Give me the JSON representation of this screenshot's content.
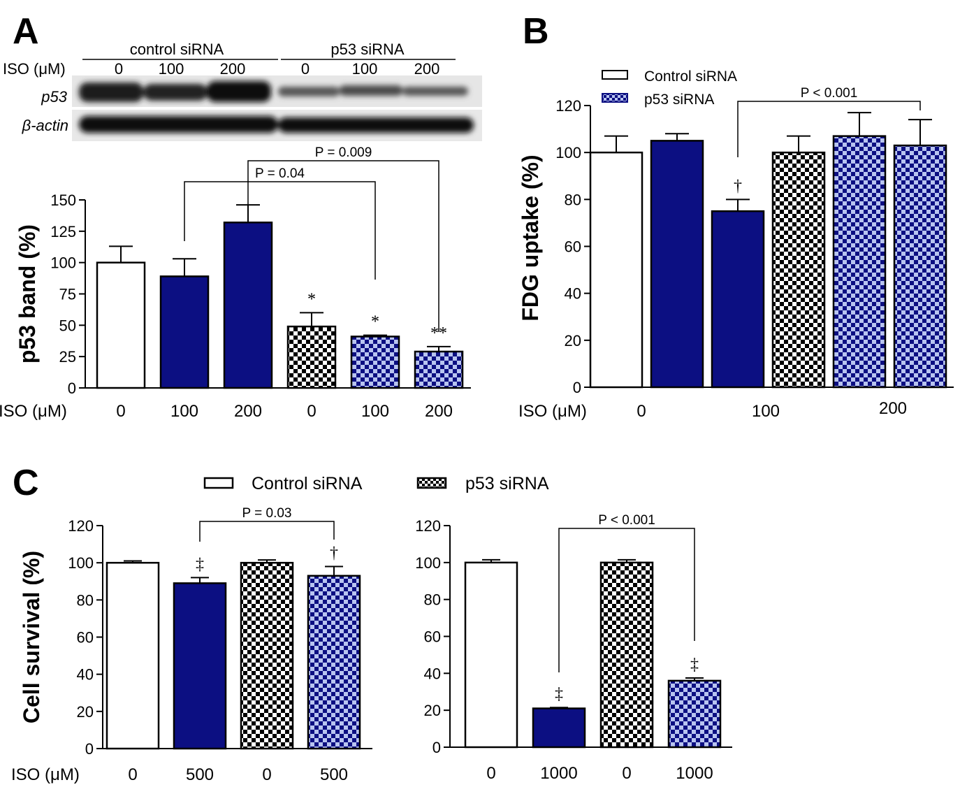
{
  "colors": {
    "navy": "#0c0f82",
    "check_light": "#b8c4f0",
    "white": "#ffffff",
    "black": "#000000"
  },
  "panel_labels": {
    "A": "A",
    "B": "B",
    "C": "C"
  },
  "blot": {
    "iso_label": "ISO (μM)",
    "group_control": "control siRNA",
    "group_p53": "p53 siRNA",
    "doses": [
      "0",
      "100",
      "200",
      "0",
      "100",
      "200"
    ],
    "row_p53": "p53",
    "row_actin": "β-actin",
    "actin_prefix": "β",
    "actin_suffix": "-actin"
  },
  "chart_data": [
    {
      "id": "A",
      "type": "bar",
      "ylabel": "p53 band (%)",
      "xlabel": "ISO (μM)",
      "ylim": [
        0,
        150
      ],
      "yticks": [
        "0",
        "25",
        "50",
        "75",
        "100",
        "125",
        "150"
      ],
      "categories": [
        "0",
        "100",
        "200",
        "0",
        "100",
        "200"
      ],
      "values": [
        100,
        89,
        132,
        49,
        41,
        29
      ],
      "errors": [
        13,
        14,
        14,
        11,
        1,
        4
      ],
      "patterns": [
        "white",
        "navy",
        "navy",
        "check-black",
        "check-blue",
        "check-blue"
      ],
      "sig_marks": [
        "",
        "",
        "",
        "*",
        "*",
        "**"
      ],
      "comparisons": [
        {
          "from": 1,
          "to": 4,
          "label": "P = 0.04"
        },
        {
          "from": 2,
          "to": 5,
          "label": "P = 0.009"
        }
      ]
    },
    {
      "id": "B",
      "type": "bar",
      "ylabel": "FDG uptake (%)",
      "xlabel": "ISO (μM)",
      "ylim": [
        0,
        120
      ],
      "yticks": [
        "0",
        "20",
        "40",
        "60",
        "80",
        "100",
        "120"
      ],
      "category_labels": [
        "0",
        "100",
        "200"
      ],
      "values": [
        100,
        105,
        75,
        100,
        107,
        103
      ],
      "errors": [
        7,
        3,
        5,
        7,
        10,
        11
      ],
      "patterns": [
        "white",
        "navy",
        "navy",
        "check-black",
        "check-blue",
        "check-blue"
      ],
      "sig_marks": [
        "",
        "",
        "†",
        "",
        "",
        ""
      ],
      "legend": [
        "Control siRNA",
        "p53 siRNA"
      ],
      "comparisons": [
        {
          "from": 2,
          "to": 5,
          "label": "P < 0.001"
        }
      ]
    },
    {
      "id": "C1",
      "type": "bar",
      "ylabel": "Cell survival (%)",
      "xlabel": "ISO (μM)",
      "ylim": [
        0,
        120
      ],
      "yticks": [
        "0",
        "20",
        "40",
        "60",
        "80",
        "100",
        "120"
      ],
      "categories": [
        "0",
        "500",
        "0",
        "500"
      ],
      "values": [
        100,
        89,
        100,
        93
      ],
      "errors": [
        1,
        3,
        1.5,
        5
      ],
      "patterns": [
        "white",
        "navy",
        "check-black",
        "check-blue"
      ],
      "sig_marks": [
        "",
        "‡",
        "",
        "†"
      ],
      "comparisons": [
        {
          "from": 1,
          "to": 3,
          "label": "P = 0.03"
        }
      ]
    },
    {
      "id": "C2",
      "type": "bar",
      "ylabel": "",
      "ylim": [
        0,
        120
      ],
      "yticks": [
        "0",
        "20",
        "40",
        "60",
        "80",
        "100",
        "120"
      ],
      "categories": [
        "0",
        "1000",
        "0",
        "1000"
      ],
      "values": [
        100,
        21,
        100,
        36
      ],
      "errors": [
        1.5,
        0.5,
        1.5,
        1.5
      ],
      "patterns": [
        "white",
        "navy",
        "check-black",
        "check-blue"
      ],
      "sig_marks": [
        "",
        "‡",
        "",
        "‡"
      ],
      "comparisons": [
        {
          "from": 1,
          "to": 3,
          "label": "P < 0.001"
        }
      ]
    }
  ],
  "legend_C": [
    "Control siRNA",
    "p53 siRNA"
  ]
}
